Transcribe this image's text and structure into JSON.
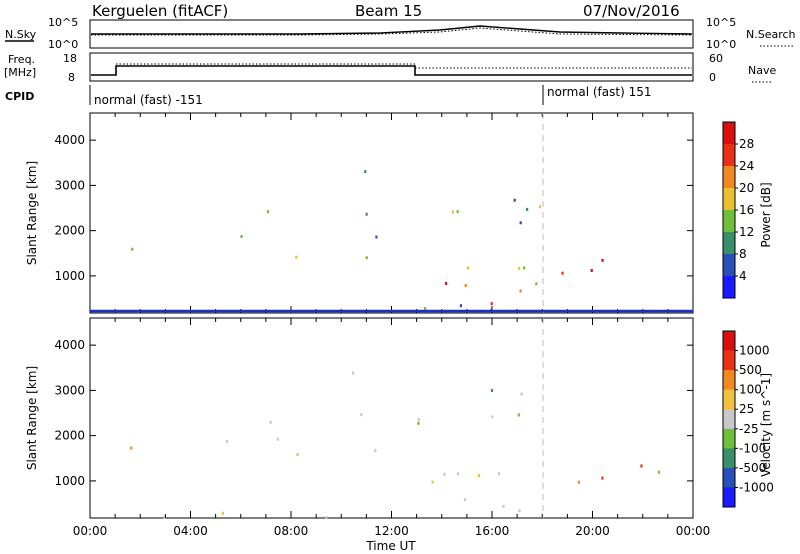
{
  "header": {
    "title": "Kerguelen (fitACF)",
    "beam": "Beam 15",
    "date": "07/Nov/2016"
  },
  "panels": {
    "nsky": {
      "label": "N.Sky",
      "ticks": [
        "10^5",
        "10^0"
      ]
    },
    "nsearch": {
      "label": "N.Search",
      "ticks": [
        "10^5",
        "10^0"
      ]
    },
    "freq": {
      "label_line1": "Freq.",
      "label_line2": "[MHz]",
      "ticks": [
        "18",
        "8"
      ]
    },
    "nave": {
      "label": "Nave",
      "ticks": [
        "60",
        "0"
      ]
    },
    "cpid": {
      "label": "CPID",
      "segments": [
        "normal (fast) -151",
        "normal (fast) 151"
      ]
    }
  },
  "chart_data": [
    {
      "type": "heatmap",
      "name": "power",
      "ylabel": "Slant Range [km]",
      "yticks": [
        1000,
        2000,
        3000,
        4000
      ],
      "ylim": [
        180,
        4600
      ],
      "xlim": [
        0,
        24
      ],
      "colorbar": {
        "label": "Power [dB]",
        "ticks": [
          "4",
          "8",
          "12",
          "16",
          "20",
          "24",
          "28"
        ],
        "colors": [
          "#1a1aff",
          "#2a4fb8",
          "#3a8f6a",
          "#6fbf3a",
          "#e8c030",
          "#f08a20",
          "#e83018",
          "#d81010"
        ]
      }
    },
    {
      "type": "heatmap",
      "name": "velocity",
      "ylabel": "Slant Range [km]",
      "yticks": [
        1000,
        2000,
        3000,
        4000
      ],
      "ylim": [
        180,
        4600
      ],
      "xlim": [
        0,
        24
      ],
      "xlabel": "Time UT",
      "xticks": [
        "00:00",
        "04:00",
        "08:00",
        "12:00",
        "16:00",
        "20:00",
        "00:00"
      ],
      "colorbar": {
        "label": "Velocity [m s^-1]",
        "ticks": [
          "1000",
          "500",
          "100",
          "25",
          "-25",
          "-100",
          "-500",
          "-1000"
        ],
        "colors": [
          "#1a1aff",
          "#2a4fb8",
          "#3a8f6a",
          "#6fbf3a",
          "#c8c8c8",
          "#f0c040",
          "#f08a20",
          "#e83018",
          "#d81010"
        ]
      }
    }
  ]
}
